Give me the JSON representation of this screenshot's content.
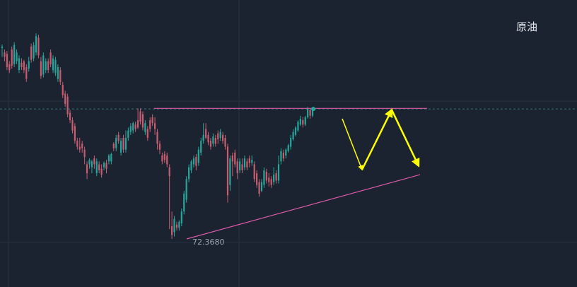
{
  "instrument": "原油",
  "chart_data": {
    "type": "candlestick",
    "low_label": "72.3680",
    "colors": {
      "bg": "#1b2230",
      "up": "#26a69a",
      "down": "#c95c6e",
      "trendline": "#d85aa5",
      "arrow": "#ffff00",
      "grid": "#263142",
      "price_line": "#2d7a72"
    },
    "resistance_level": 76.8,
    "support_line": [
      {
        "bar": 0,
        "y": 72.368
      },
      {
        "bar": 1,
        "y": 74.55
      }
    ],
    "forecast_arrows": [
      [
        74.7,
        75.85
      ],
      [
        75.85,
        76.75
      ],
      [
        76.75,
        74.85
      ]
    ],
    "candles": [
      {
        "o": 78.85,
        "c": 78.9,
        "h": 78.97,
        "l": 78.55
      },
      {
        "o": 78.7,
        "c": 78.55,
        "h": 78.8,
        "l": 78.4
      },
      {
        "o": 78.65,
        "c": 78.2,
        "h": 78.75,
        "l": 78.1
      },
      {
        "o": 78.3,
        "c": 78.1,
        "h": 78.4,
        "l": 78.0
      },
      {
        "o": 78.8,
        "c": 78.25,
        "h": 78.9,
        "l": 78.15
      },
      {
        "o": 78.3,
        "c": 78.95,
        "h": 79.05,
        "l": 78.2
      },
      {
        "o": 78.4,
        "c": 78.7,
        "h": 78.8,
        "l": 78.3
      },
      {
        "o": 78.1,
        "c": 78.5,
        "h": 78.6,
        "l": 78.0
      },
      {
        "o": 78.35,
        "c": 78.2,
        "h": 78.5,
        "l": 78.1
      },
      {
        "o": 78.4,
        "c": 78.1,
        "h": 78.45,
        "l": 78.0
      },
      {
        "o": 78.2,
        "c": 77.8,
        "h": 78.3,
        "l": 77.7
      },
      {
        "o": 78.15,
        "c": 78.4,
        "h": 78.55,
        "l": 78.05
      },
      {
        "o": 78.9,
        "c": 78.45,
        "h": 79.0,
        "l": 78.35
      },
      {
        "o": 78.5,
        "c": 78.95,
        "h": 79.05,
        "l": 78.4
      },
      {
        "o": 78.7,
        "c": 79.25,
        "h": 79.35,
        "l": 78.6
      },
      {
        "o": 79.2,
        "c": 78.6,
        "h": 79.3,
        "l": 78.5
      },
      {
        "o": 78.4,
        "c": 77.9,
        "h": 78.55,
        "l": 77.8
      },
      {
        "o": 77.95,
        "c": 78.6,
        "h": 78.7,
        "l": 77.85
      },
      {
        "o": 78.1,
        "c": 78.4,
        "h": 78.5,
        "l": 78.0
      },
      {
        "o": 78.4,
        "c": 78.1,
        "h": 78.5,
        "l": 78.0
      },
      {
        "o": 78.7,
        "c": 78.3,
        "h": 78.8,
        "l": 78.2
      },
      {
        "o": 78.1,
        "c": 78.5,
        "h": 78.6,
        "l": 78.0
      },
      {
        "o": 78.0,
        "c": 78.45,
        "h": 78.55,
        "l": 77.9
      },
      {
        "o": 77.8,
        "c": 78.2,
        "h": 78.3,
        "l": 77.7
      },
      {
        "o": 78.1,
        "c": 77.7,
        "h": 78.2,
        "l": 77.6
      },
      {
        "o": 77.6,
        "c": 77.25,
        "h": 77.7,
        "l": 77.15
      },
      {
        "o": 77.3,
        "c": 76.95,
        "h": 77.4,
        "l": 76.85
      },
      {
        "o": 77.2,
        "c": 76.6,
        "h": 77.3,
        "l": 76.5
      },
      {
        "o": 76.65,
        "c": 76.4,
        "h": 76.75,
        "l": 76.3
      },
      {
        "o": 76.4,
        "c": 76.05,
        "h": 76.5,
        "l": 75.95
      },
      {
        "o": 76.2,
        "c": 75.7,
        "h": 76.3,
        "l": 75.6
      },
      {
        "o": 75.7,
        "c": 75.5,
        "h": 75.8,
        "l": 75.4
      },
      {
        "o": 75.5,
        "c": 75.4,
        "h": 75.8,
        "l": 75.3
      },
      {
        "o": 75.6,
        "c": 75.45,
        "h": 75.7,
        "l": 75.3
      },
      {
        "o": 75.4,
        "c": 75.15,
        "h": 75.5,
        "l": 74.9
      },
      {
        "o": 74.9,
        "c": 74.6,
        "h": 75.0,
        "l": 74.4
      },
      {
        "o": 74.9,
        "c": 75.05,
        "h": 75.1,
        "l": 74.75
      },
      {
        "o": 74.8,
        "c": 75.0,
        "h": 75.05,
        "l": 74.6
      },
      {
        "o": 75.1,
        "c": 74.9,
        "h": 75.2,
        "l": 74.75
      },
      {
        "o": 74.6,
        "c": 75.0,
        "h": 75.1,
        "l": 74.5
      },
      {
        "o": 74.9,
        "c": 74.7,
        "h": 75.0,
        "l": 74.6
      },
      {
        "o": 74.75,
        "c": 74.55,
        "h": 74.9,
        "l": 74.45
      },
      {
        "o": 74.8,
        "c": 74.95,
        "h": 75.0,
        "l": 74.7
      },
      {
        "o": 74.95,
        "c": 74.75,
        "h": 75.05,
        "l": 74.6
      },
      {
        "o": 75.0,
        "c": 75.2,
        "h": 75.25,
        "l": 74.9
      },
      {
        "o": 75.0,
        "c": 75.25,
        "h": 75.3,
        "l": 74.9
      },
      {
        "o": 75.6,
        "c": 75.45,
        "h": 75.65,
        "l": 75.35
      },
      {
        "o": 75.45,
        "c": 75.8,
        "h": 75.9,
        "l": 75.35
      },
      {
        "o": 75.9,
        "c": 75.7,
        "h": 76.0,
        "l": 75.6
      },
      {
        "o": 75.3,
        "c": 75.7,
        "h": 75.8,
        "l": 75.2
      },
      {
        "o": 75.8,
        "c": 75.4,
        "h": 75.9,
        "l": 75.3
      },
      {
        "o": 75.4,
        "c": 75.8,
        "h": 76.05,
        "l": 75.3
      },
      {
        "o": 75.8,
        "c": 76.05,
        "h": 76.15,
        "l": 75.7
      },
      {
        "o": 76.0,
        "c": 76.2,
        "h": 76.3,
        "l": 75.9
      },
      {
        "o": 76.05,
        "c": 76.3,
        "h": 76.35,
        "l": 75.95
      },
      {
        "o": 76.25,
        "c": 76.1,
        "h": 76.35,
        "l": 76.0
      },
      {
        "o": 76.4,
        "c": 76.15,
        "h": 76.8,
        "l": 76.1
      },
      {
        "o": 76.7,
        "c": 76.35,
        "h": 76.8,
        "l": 76.25
      },
      {
        "o": 76.6,
        "c": 76.15,
        "h": 76.7,
        "l": 76.05
      },
      {
        "o": 76.0,
        "c": 76.3,
        "h": 76.4,
        "l": 75.9
      },
      {
        "o": 76.1,
        "c": 75.8,
        "h": 76.2,
        "l": 75.7
      },
      {
        "o": 76.4,
        "c": 76.1,
        "h": 76.5,
        "l": 76.0
      },
      {
        "o": 76.5,
        "c": 76.3,
        "h": 76.6,
        "l": 76.2
      },
      {
        "o": 76.3,
        "c": 76.1,
        "h": 76.5,
        "l": 75.9
      },
      {
        "o": 76.0,
        "c": 75.6,
        "h": 76.1,
        "l": 75.4
      },
      {
        "o": 75.6,
        "c": 75.4,
        "h": 75.7,
        "l": 75.25
      },
      {
        "o": 75.2,
        "c": 75.0,
        "h": 75.3,
        "l": 74.9
      },
      {
        "o": 75.25,
        "c": 75.05,
        "h": 75.35,
        "l": 74.95
      },
      {
        "o": 75.2,
        "c": 74.9,
        "h": 75.3,
        "l": 74.8
      },
      {
        "o": 74.8,
        "c": 74.5,
        "h": 74.9,
        "l": 72.7
      },
      {
        "o": 72.8,
        "c": 72.5,
        "h": 73.3,
        "l": 72.37
      },
      {
        "o": 72.6,
        "c": 73.05,
        "h": 73.15,
        "l": 72.45
      },
      {
        "o": 72.85,
        "c": 72.75,
        "h": 72.95,
        "l": 72.65
      },
      {
        "o": 72.75,
        "c": 72.95,
        "h": 73.0,
        "l": 72.65
      },
      {
        "o": 72.9,
        "c": 73.3,
        "h": 73.4,
        "l": 72.8
      },
      {
        "o": 73.3,
        "c": 73.9,
        "h": 74.0,
        "l": 73.2
      },
      {
        "o": 73.7,
        "c": 74.4,
        "h": 74.5,
        "l": 73.6
      },
      {
        "o": 74.4,
        "c": 74.8,
        "h": 74.9,
        "l": 74.3
      },
      {
        "o": 74.7,
        "c": 75.0,
        "h": 75.05,
        "l": 74.6
      },
      {
        "o": 74.9,
        "c": 75.1,
        "h": 75.2,
        "l": 74.8
      },
      {
        "o": 75.15,
        "c": 74.85,
        "h": 75.25,
        "l": 74.7
      },
      {
        "o": 74.95,
        "c": 75.4,
        "h": 75.5,
        "l": 74.85
      },
      {
        "o": 75.3,
        "c": 75.7,
        "h": 75.8,
        "l": 75.2
      },
      {
        "o": 75.7,
        "c": 75.9,
        "h": 76.3,
        "l": 75.6
      },
      {
        "o": 76.1,
        "c": 75.8,
        "h": 76.3,
        "l": 75.75
      },
      {
        "o": 75.9,
        "c": 75.65,
        "h": 76.0,
        "l": 75.55
      },
      {
        "o": 75.7,
        "c": 75.5,
        "h": 75.8,
        "l": 75.4
      },
      {
        "o": 75.6,
        "c": 75.85,
        "h": 75.95,
        "l": 75.5
      },
      {
        "o": 75.8,
        "c": 75.6,
        "h": 75.9,
        "l": 75.5
      },
      {
        "o": 75.95,
        "c": 75.75,
        "h": 76.05,
        "l": 75.6
      },
      {
        "o": 75.8,
        "c": 76.0,
        "h": 76.1,
        "l": 75.7
      },
      {
        "o": 75.9,
        "c": 75.7,
        "h": 76.0,
        "l": 75.6
      },
      {
        "o": 75.8,
        "c": 75.5,
        "h": 75.9,
        "l": 75.4
      },
      {
        "o": 75.5,
        "c": 73.85,
        "h": 75.6,
        "l": 73.6
      },
      {
        "o": 74.2,
        "c": 75.1,
        "h": 75.2,
        "l": 74.0
      },
      {
        "o": 75.2,
        "c": 75.0,
        "h": 75.3,
        "l": 74.5
      },
      {
        "o": 75.3,
        "c": 74.9,
        "h": 75.4,
        "l": 74.8
      },
      {
        "o": 75.0,
        "c": 74.6,
        "h": 75.1,
        "l": 74.4
      },
      {
        "o": 74.7,
        "c": 75.0,
        "h": 75.1,
        "l": 74.6
      },
      {
        "o": 74.9,
        "c": 74.7,
        "h": 75.1,
        "l": 74.6
      },
      {
        "o": 74.8,
        "c": 75.1,
        "h": 75.2,
        "l": 74.7
      },
      {
        "o": 75.0,
        "c": 74.8,
        "h": 75.1,
        "l": 74.7
      },
      {
        "o": 75.1,
        "c": 74.95,
        "h": 75.2,
        "l": 74.8
      },
      {
        "o": 74.95,
        "c": 75.05,
        "h": 75.2,
        "l": 74.85
      },
      {
        "o": 74.9,
        "c": 74.4,
        "h": 75.0,
        "l": 74.3
      },
      {
        "o": 74.6,
        "c": 74.2,
        "h": 74.7,
        "l": 74.1
      },
      {
        "o": 74.3,
        "c": 73.9,
        "h": 74.4,
        "l": 73.8
      },
      {
        "o": 74.0,
        "c": 74.3,
        "h": 74.4,
        "l": 73.95
      },
      {
        "o": 74.2,
        "c": 74.7,
        "h": 74.8,
        "l": 74.1
      },
      {
        "o": 74.65,
        "c": 74.35,
        "h": 74.75,
        "l": 74.25
      },
      {
        "o": 74.45,
        "c": 74.3,
        "h": 74.6,
        "l": 74.15
      },
      {
        "o": 74.4,
        "c": 74.2,
        "h": 74.5,
        "l": 74.1
      },
      {
        "o": 74.3,
        "c": 74.55,
        "h": 74.8,
        "l": 74.2
      },
      {
        "o": 74.6,
        "c": 74.35,
        "h": 74.7,
        "l": 74.25
      },
      {
        "o": 74.35,
        "c": 74.9,
        "h": 75.2,
        "l": 74.25
      },
      {
        "o": 75.0,
        "c": 75.35,
        "h": 75.45,
        "l": 74.9
      },
      {
        "o": 75.3,
        "c": 75.1,
        "h": 75.4,
        "l": 75.0
      },
      {
        "o": 75.2,
        "c": 75.4,
        "h": 75.45,
        "l": 75.1
      },
      {
        "o": 75.35,
        "c": 75.55,
        "h": 75.6,
        "l": 75.3
      },
      {
        "o": 75.5,
        "c": 75.8,
        "h": 75.9,
        "l": 75.4
      },
      {
        "o": 75.75,
        "c": 76.0,
        "h": 76.1,
        "l": 75.7
      },
      {
        "o": 75.9,
        "c": 76.15,
        "h": 76.2,
        "l": 75.85
      },
      {
        "o": 76.05,
        "c": 76.35,
        "h": 76.4,
        "l": 76.0
      },
      {
        "o": 76.25,
        "c": 76.45,
        "h": 76.55,
        "l": 76.2
      },
      {
        "o": 76.4,
        "c": 76.25,
        "h": 76.5,
        "l": 76.15
      },
      {
        "o": 76.25,
        "c": 76.5,
        "h": 76.55,
        "l": 76.2
      },
      {
        "o": 76.5,
        "c": 76.8,
        "h": 76.85,
        "l": 76.45
      },
      {
        "o": 76.75,
        "c": 76.55,
        "h": 76.8,
        "l": 76.45
      },
      {
        "o": 76.55,
        "c": 76.8,
        "h": 76.85,
        "l": 76.5
      }
    ],
    "last_price": 76.78
  }
}
